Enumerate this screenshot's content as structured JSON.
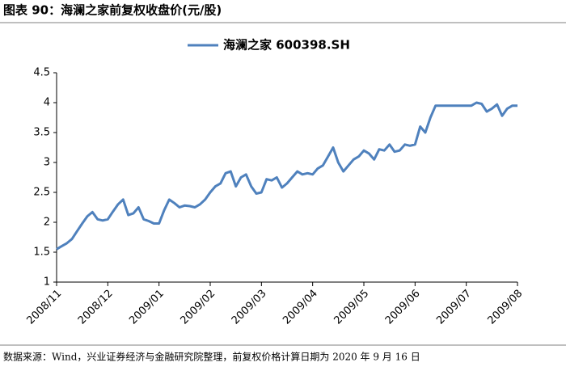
{
  "header": {
    "title": "图表 90：海澜之家前复权收盘价(元/股)"
  },
  "chart_data": {
    "type": "line",
    "categories": [
      "2008/11",
      null,
      null,
      null,
      null,
      null,
      null,
      null,
      null,
      null,
      "2008/12",
      null,
      null,
      null,
      null,
      null,
      null,
      null,
      null,
      null,
      "2009/01",
      null,
      null,
      null,
      null,
      null,
      null,
      null,
      null,
      null,
      "2009/02",
      null,
      null,
      null,
      null,
      null,
      null,
      null,
      null,
      null,
      "2009/03",
      null,
      null,
      null,
      null,
      null,
      null,
      null,
      null,
      null,
      "2009/04",
      null,
      null,
      null,
      null,
      null,
      null,
      null,
      null,
      null,
      "2009/05",
      null,
      null,
      null,
      null,
      null,
      null,
      null,
      null,
      null,
      "2009/06",
      null,
      null,
      null,
      null,
      null,
      null,
      null,
      null,
      null,
      "2009/07",
      null,
      null,
      null,
      null,
      null,
      null,
      null,
      null,
      null,
      "2009/08"
    ],
    "series": [
      {
        "name": "海澜之家  600398.SH",
        "color": "#4f81bd",
        "values": [
          1.55,
          1.6,
          1.65,
          1.72,
          1.85,
          1.98,
          2.1,
          2.17,
          2.05,
          2.03,
          2.05,
          2.18,
          2.3,
          2.38,
          2.12,
          2.15,
          2.25,
          2.05,
          2.02,
          1.98,
          1.98,
          2.2,
          2.38,
          2.32,
          2.25,
          2.28,
          2.27,
          2.25,
          2.3,
          2.38,
          2.5,
          2.6,
          2.65,
          2.82,
          2.85,
          2.6,
          2.75,
          2.8,
          2.6,
          2.48,
          2.5,
          2.72,
          2.7,
          2.75,
          2.58,
          2.65,
          2.75,
          2.85,
          2.8,
          2.82,
          2.8,
          2.9,
          2.95,
          3.1,
          3.25,
          3.0,
          2.85,
          2.95,
          3.05,
          3.1,
          3.2,
          3.15,
          3.05,
          3.22,
          3.2,
          3.3,
          3.18,
          3.2,
          3.3,
          3.28,
          3.3,
          3.6,
          3.5,
          3.75,
          3.95,
          3.95,
          3.95,
          3.95,
          3.95,
          3.95,
          3.95,
          3.95,
          4.0,
          3.98,
          3.85,
          3.9,
          3.97,
          3.78,
          3.9,
          3.95,
          3.95
        ]
      }
    ],
    "ylim": [
      1,
      4.5
    ],
    "yticks": [
      1,
      1.5,
      2,
      2.5,
      3,
      3.5,
      4,
      4.5
    ],
    "grid": false,
    "legend": "top"
  },
  "footer": {
    "source": "数据来源：Wind，兴业证券经济与金融研究院整理，前复权价格计算日期为 2020 年 9 月 16 日"
  }
}
